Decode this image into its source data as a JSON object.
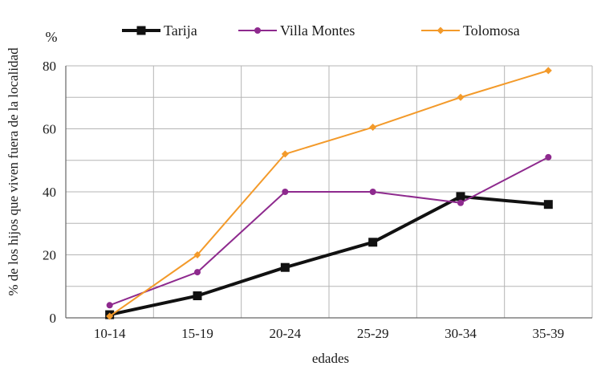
{
  "chart_data": {
    "type": "line",
    "title": "",
    "unit_label": "%",
    "xlabel": "edades",
    "ylabel": "% de los hijos que viven fuera de la localidad",
    "categories": [
      "10-14",
      "15-19",
      "20-24",
      "25-29",
      "30-34",
      "35-39"
    ],
    "ylim": [
      0,
      80
    ],
    "yticks": [
      0,
      20,
      40,
      60,
      80
    ],
    "grid": true,
    "legend_position": "top",
    "series": [
      {
        "name": "Tarija",
        "color": "#111111",
        "marker": "square",
        "values": [
          1,
          7,
          16,
          24,
          38.5,
          36
        ]
      },
      {
        "name": "Villa Montes",
        "color": "#8e2a8e",
        "marker": "circle",
        "values": [
          4,
          14.5,
          40,
          40,
          36.5,
          51
        ]
      },
      {
        "name": "Tolomosa",
        "color": "#f39a2a",
        "marker": "diamond",
        "values": [
          0.5,
          20,
          52,
          60.5,
          70,
          78.5
        ]
      }
    ]
  }
}
